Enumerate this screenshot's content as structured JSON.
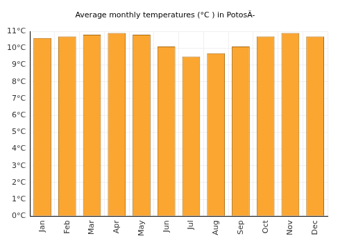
{
  "chart_data": {
    "type": "bar",
    "title": "Average monthly temperatures (°C ) in PotosÃ-",
    "categories": [
      "Jan",
      "Feb",
      "Mar",
      "Apr",
      "May",
      "Jun",
      "Jul",
      "Aug",
      "Sep",
      "Oct",
      "Nov",
      "Dec"
    ],
    "values": [
      10.6,
      10.7,
      10.8,
      10.9,
      10.8,
      10.1,
      9.5,
      9.7,
      10.1,
      10.7,
      10.9,
      10.7
    ],
    "color": "#fba631",
    "ylim": [
      0,
      11
    ],
    "yticks": [
      {
        "value": 0,
        "label": "0°C"
      },
      {
        "value": 1,
        "label": "1°C"
      },
      {
        "value": 2,
        "label": "2°C"
      },
      {
        "value": 3,
        "label": "3°C"
      },
      {
        "value": 4,
        "label": "4°C"
      },
      {
        "value": 5,
        "label": "5°C"
      },
      {
        "value": 6,
        "label": "6°C"
      },
      {
        "value": 7,
        "label": "7°C"
      },
      {
        "value": 8,
        "label": "8°C"
      },
      {
        "value": 9,
        "label": "9°C"
      },
      {
        "value": 10,
        "label": "10°C"
      },
      {
        "value": 11,
        "label": "11°C"
      }
    ],
    "grid": true
  }
}
